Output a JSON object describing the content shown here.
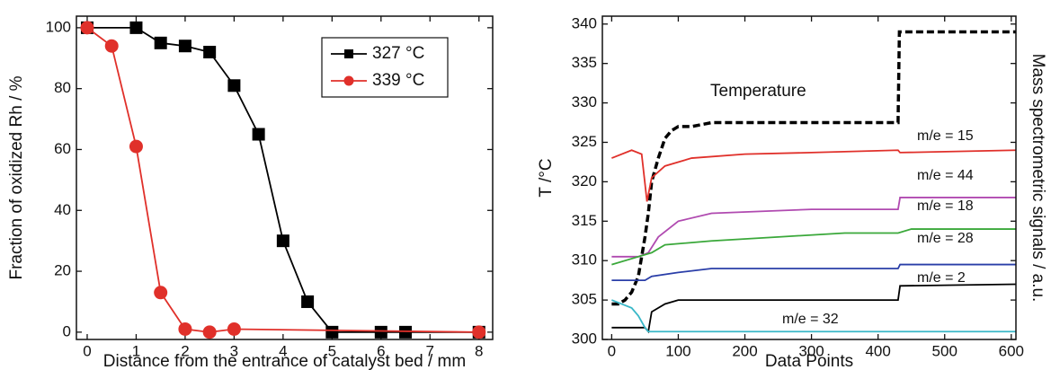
{
  "chart_data": [
    {
      "type": "line",
      "xlabel": "Distance from the entrance of catalyst bed / mm",
      "ylabel": "Fraction of oxidized Rh / %",
      "xlim": [
        -0.22,
        8.28
      ],
      "xticks": [
        0,
        1,
        2,
        3,
        4,
        5,
        6,
        7,
        8
      ],
      "ylim": [
        -2.4,
        103.8
      ],
      "yticks": [
        0,
        20,
        40,
        60,
        80,
        100
      ],
      "legend": "upper right",
      "series": [
        {
          "name": "327 °C",
          "color": "#000000",
          "marker": "square",
          "x": [
            0,
            1,
            1.5,
            2,
            2.5,
            3,
            3.5,
            4,
            4.5,
            5,
            6,
            6.5,
            8
          ],
          "values": [
            100,
            100,
            95,
            94,
            92,
            81,
            65,
            30,
            10,
            0,
            0,
            0,
            0
          ]
        },
        {
          "name": "339 °C",
          "color": "#e0302a",
          "marker": "circle",
          "x": [
            0,
            0.5,
            1,
            1.5,
            2,
            2.5,
            3,
            8
          ],
          "values": [
            100,
            94,
            61,
            13,
            1,
            0,
            1,
            0
          ]
        }
      ]
    },
    {
      "type": "line",
      "xlabel": "Data Points",
      "ylabel": "T /°C",
      "y2label": "Mass spectrometric signals / a.u.",
      "xlim": [
        -14,
        607
      ],
      "xticks": [
        0,
        100,
        200,
        300,
        400,
        500,
        600
      ],
      "ylim": [
        300,
        341
      ],
      "yticks": [
        300,
        305,
        310,
        315,
        320,
        325,
        330,
        335,
        340
      ],
      "series": [
        {
          "name": "Temperature",
          "color": "#000000",
          "dashed": true,
          "x": [
            0,
            10,
            20,
            30,
            40,
            50,
            55,
            60,
            70,
            80,
            90,
            100,
            120,
            150,
            200,
            300,
            400,
            430,
            432,
            450,
            500,
            550,
            600,
            607
          ],
          "values": [
            304.5,
            304.5,
            305,
            306,
            308,
            313,
            316,
            320,
            323,
            325.5,
            326.5,
            327,
            327,
            327.5,
            327.5,
            327.5,
            327.5,
            327.5,
            339,
            339,
            339,
            339,
            339,
            339
          ]
        },
        {
          "name": "m/e = 15",
          "color": "#e0302a",
          "x": [
            0,
            30,
            45,
            53,
            60,
            80,
            120,
            200,
            300,
            430,
            433,
            607
          ],
          "values": [
            323,
            324,
            323.5,
            317.5,
            320.5,
            322,
            323,
            323.5,
            323.7,
            324,
            323.7,
            324
          ]
        },
        {
          "name": "m/e = 44",
          "color": "#b04ab0",
          "x": [
            0,
            40,
            55,
            70,
            100,
            150,
            300,
            430,
            433,
            607
          ],
          "values": [
            310.5,
            310.5,
            311,
            313,
            315,
            316,
            316.5,
            316.5,
            318,
            318
          ]
        },
        {
          "name": "m/e = 18",
          "color": "#3aa83a",
          "x": [
            0,
            40,
            60,
            80,
            150,
            250,
            350,
            430,
            450,
            607
          ],
          "values": [
            309.5,
            310.5,
            311,
            312,
            312.5,
            313,
            313.5,
            313.5,
            314,
            314
          ]
        },
        {
          "name": "m/e = 28",
          "color": "#2a3ea8",
          "x": [
            0,
            50,
            60,
            100,
            150,
            430,
            433,
            607
          ],
          "values": [
            307.5,
            307.5,
            308,
            308.5,
            309,
            309,
            309.5,
            309.5
          ]
        },
        {
          "name": "m/e = 2",
          "color": "#000000",
          "x": [
            0,
            50,
            55,
            60,
            80,
            100,
            430,
            433,
            607
          ],
          "values": [
            301.5,
            301.5,
            301,
            303.5,
            304.5,
            305,
            305,
            306.8,
            307
          ]
        },
        {
          "name": "m/e = 32",
          "color": "#3ab8c8",
          "x": [
            0,
            30,
            40,
            50,
            55,
            607
          ],
          "values": [
            305,
            304,
            303,
            301.5,
            301,
            301
          ]
        }
      ]
    }
  ]
}
